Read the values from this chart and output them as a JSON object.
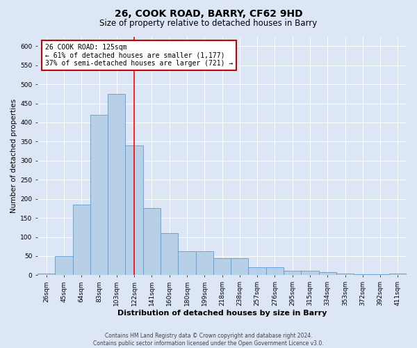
{
  "title": "26, COOK ROAD, BARRY, CF62 9HD",
  "subtitle": "Size of property relative to detached houses in Barry",
  "xlabel": "Distribution of detached houses by size in Barry",
  "ylabel": "Number of detached properties",
  "footnote": "Contains HM Land Registry data © Crown copyright and database right 2024.\nContains public sector information licensed under the Open Government Licence v3.0.",
  "categories": [
    "26sqm",
    "45sqm",
    "64sqm",
    "83sqm",
    "103sqm",
    "122sqm",
    "141sqm",
    "160sqm",
    "180sqm",
    "199sqm",
    "218sqm",
    "238sqm",
    "257sqm",
    "276sqm",
    "295sqm",
    "315sqm",
    "334sqm",
    "353sqm",
    "372sqm",
    "392sqm",
    "411sqm"
  ],
  "values": [
    5,
    50,
    185,
    420,
    475,
    340,
    175,
    110,
    63,
    63,
    45,
    45,
    20,
    20,
    12,
    12,
    8,
    5,
    3,
    2,
    4
  ],
  "bar_color": "#b8cfe8",
  "bar_edge_color": "#5b9bd5",
  "red_line_index": 5,
  "red_line_label": "26 COOK ROAD: 125sqm",
  "annotation_line1": "← 61% of detached houses are smaller (1,177)",
  "annotation_line2": "37% of semi-detached houses are larger (721) →",
  "annotation_box_facecolor": "#ffffff",
  "annotation_box_edgecolor": "#cc0000",
  "ylim": [
    0,
    625
  ],
  "yticks": [
    0,
    50,
    100,
    150,
    200,
    250,
    300,
    350,
    400,
    450,
    500,
    550,
    600
  ],
  "background_color": "#dce6f5",
  "plot_bg_color": "#dce6f5",
  "title_fontsize": 10,
  "subtitle_fontsize": 8.5,
  "xlabel_fontsize": 8,
  "ylabel_fontsize": 7.5,
  "tick_fontsize": 6.5,
  "footnote_fontsize": 5.5,
  "annotation_fontsize": 7
}
